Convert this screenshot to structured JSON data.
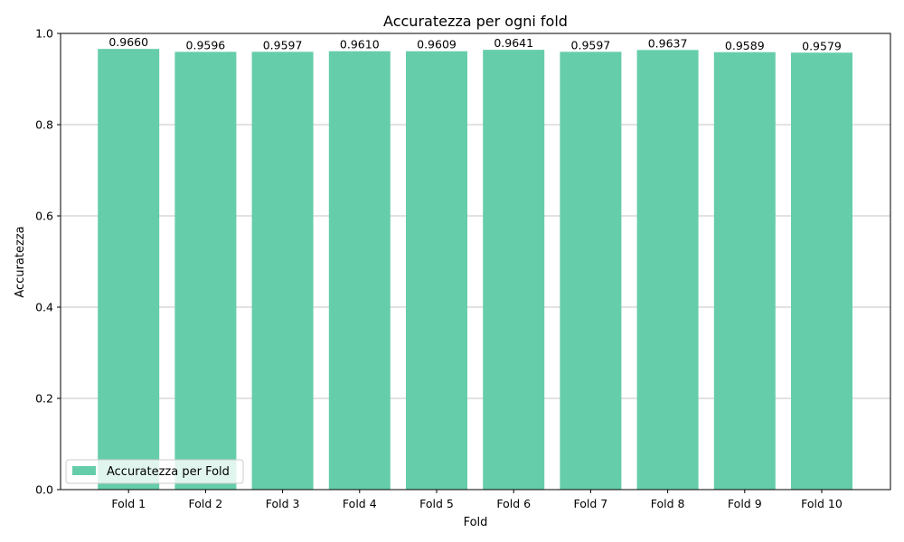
{
  "chart_data": {
    "type": "bar",
    "title": "Accuratezza per ogni fold",
    "xlabel": "Fold",
    "ylabel": "Accuratezza",
    "categories": [
      "Fold 1",
      "Fold 2",
      "Fold 3",
      "Fold 4",
      "Fold 5",
      "Fold 6",
      "Fold 7",
      "Fold 8",
      "Fold 9",
      "Fold 10"
    ],
    "series": [
      {
        "name": "Accuratezza per Fold",
        "values": [
          0.966,
          0.9596,
          0.9597,
          0.961,
          0.9609,
          0.9641,
          0.9597,
          0.9637,
          0.9589,
          0.9579
        ],
        "labels": [
          "0.9660",
          "0.9596",
          "0.9597",
          "0.9610",
          "0.9609",
          "0.9641",
          "0.9597",
          "0.9637",
          "0.9589",
          "0.9579"
        ],
        "color": "#66cdaa"
      }
    ],
    "ylim": [
      0,
      1.0
    ],
    "yticks": [
      0.0,
      0.2,
      0.4,
      0.6,
      0.8,
      1.0
    ],
    "ytick_labels": [
      "0.0",
      "0.2",
      "0.4",
      "0.6",
      "0.8",
      "1.0"
    ],
    "grid": "y",
    "legend_position": "lower-left"
  }
}
